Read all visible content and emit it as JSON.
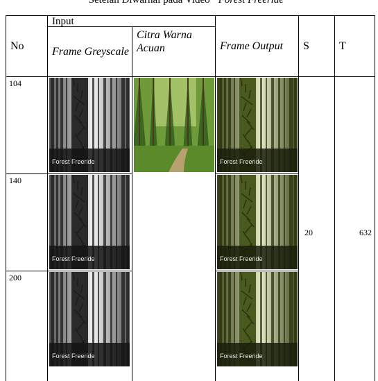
{
  "caption": {
    "prefix": "Setelah Diwarnai pada Video",
    "title": "“Forest Freeride”"
  },
  "table": {
    "headers": {
      "no": "No",
      "input": "Input",
      "greyscale": "Frame Greyscale",
      "reference": "Citra Warna Acuan",
      "output": "Frame Output",
      "s": "S",
      "t": "T"
    },
    "rows": [
      {
        "frame": 104,
        "greyscale_overlay": "Forest Freeride",
        "output_overlay": "Forest Freeride"
      },
      {
        "frame": 140,
        "greyscale_overlay": "Forest Freeride",
        "output_overlay": "Forest Freeride"
      },
      {
        "frame": 200,
        "greyscale_overlay": "Forest Freeride",
        "output_overlay": "Forest Freeride"
      }
    ],
    "s": 20,
    "t": 632
  }
}
